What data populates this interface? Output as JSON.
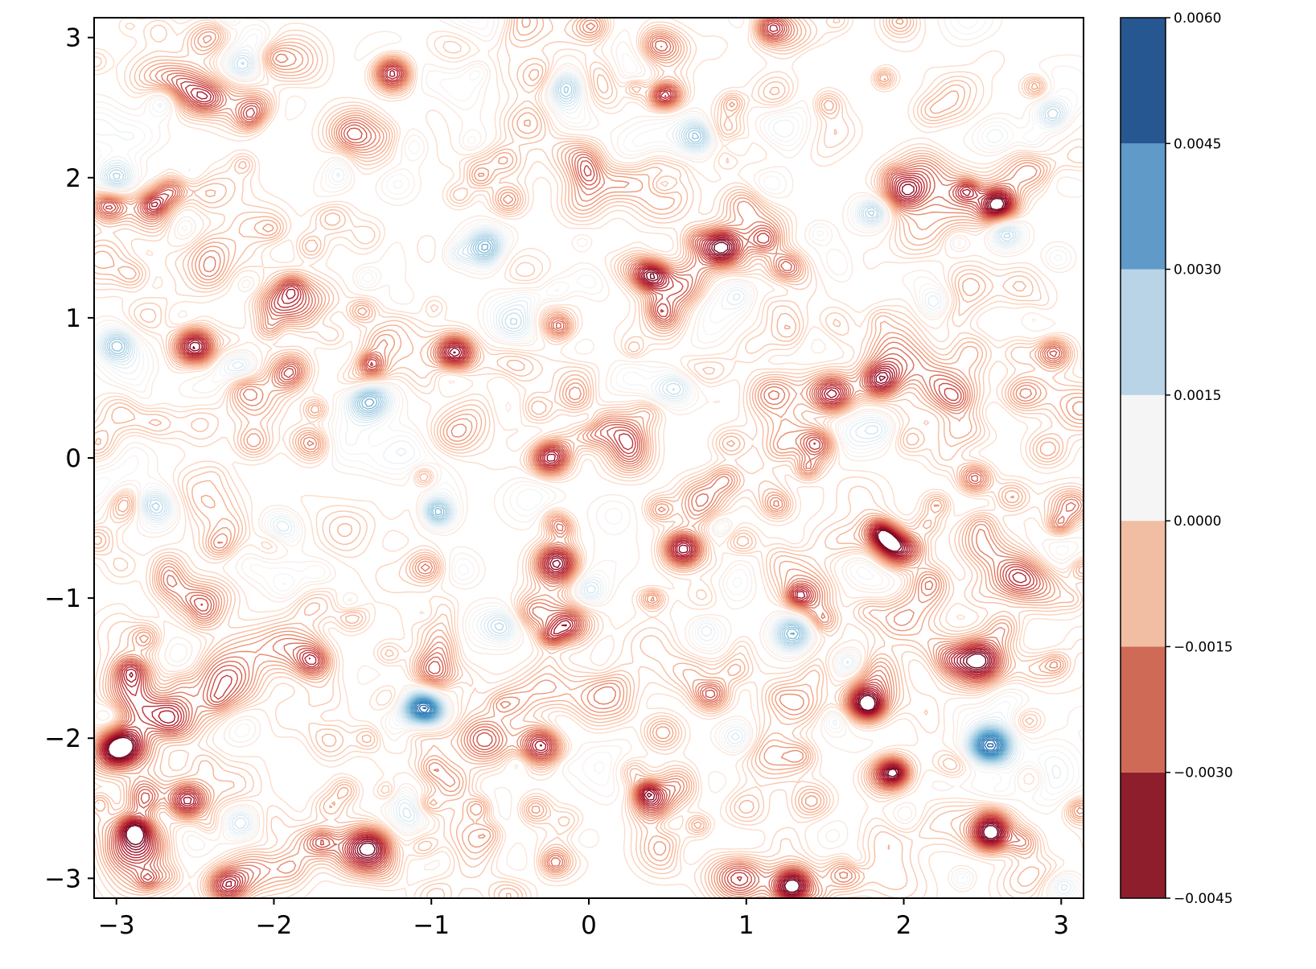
{
  "chart_data": {
    "type": "contour",
    "title": "",
    "xlabel": "",
    "ylabel": "",
    "xlim": [
      -3.14159,
      3.14159
    ],
    "ylim": [
      -3.14159,
      3.14159
    ],
    "xticks": [
      {
        "value": -3,
        "label": "−3"
      },
      {
        "value": -2,
        "label": "−2"
      },
      {
        "value": -1,
        "label": "−1"
      },
      {
        "value": 0,
        "label": "0"
      },
      {
        "value": 1,
        "label": "1"
      },
      {
        "value": 2,
        "label": "2"
      },
      {
        "value": 3,
        "label": "3"
      }
    ],
    "yticks": [
      {
        "value": -3,
        "label": "−3"
      },
      {
        "value": -2,
        "label": "−2"
      },
      {
        "value": -1,
        "label": "−1"
      },
      {
        "value": 0,
        "label": "0"
      },
      {
        "value": 1,
        "label": "1"
      },
      {
        "value": 2,
        "label": "2"
      },
      {
        "value": 3,
        "label": "3"
      }
    ],
    "grid": false,
    "colormap": "RdBu",
    "field_description": "noisy field of small-scale blobs with many closely spaced contour lines",
    "z_range": [
      -0.0045,
      0.006
    ],
    "colorbar": {
      "levels": [
        {
          "value": -0.0045,
          "label": "−0.0045"
        },
        {
          "value": -0.003,
          "label": "−0.0030"
        },
        {
          "value": -0.0015,
          "label": "−0.0015"
        },
        {
          "value": 0.0,
          "label": "0.0000"
        },
        {
          "value": 0.0015,
          "label": "0.0015"
        },
        {
          "value": 0.003,
          "label": "0.0030"
        },
        {
          "value": 0.0045,
          "label": "0.0045"
        },
        {
          "value": 0.006,
          "label": "0.0060"
        }
      ],
      "bands": [
        {
          "from": -0.0045,
          "to": -0.003,
          "color": "#8e1e2c"
        },
        {
          "from": -0.003,
          "to": -0.0015,
          "color": "#cf6a56"
        },
        {
          "from": -0.0015,
          "to": 0.0,
          "color": "#f1bea4"
        },
        {
          "from": 0.0,
          "to": 0.0015,
          "color": "#f5f5f5"
        },
        {
          "from": 0.0015,
          "to": 0.003,
          "color": "#b9d4e6"
        },
        {
          "from": 0.003,
          "to": 0.0045,
          "color": "#5f9ac8"
        },
        {
          "from": 0.0045,
          "to": 0.006,
          "color": "#275790"
        }
      ]
    },
    "features": [
      {
        "type": "min",
        "x": -1.25,
        "y": 2.75,
        "amp": -0.0045,
        "sigma": 0.09
      },
      {
        "type": "min",
        "x": -0.85,
        "y": 0.75,
        "amp": -0.0042,
        "sigma": 0.09
      },
      {
        "type": "min",
        "x": -0.25,
        "y": 0.0,
        "amp": -0.004,
        "sigma": 0.09
      },
      {
        "type": "min",
        "x": -0.2,
        "y": -0.75,
        "amp": -0.0043,
        "sigma": 0.1
      },
      {
        "type": "min",
        "x": 0.6,
        "y": -0.65,
        "amp": -0.0042,
        "sigma": 0.09
      },
      {
        "type": "min",
        "x": 0.85,
        "y": 1.5,
        "amp": -0.0042,
        "sigma": 0.1
      },
      {
        "type": "min",
        "x": 0.4,
        "y": 1.3,
        "amp": -0.0035,
        "sigma": 0.08
      },
      {
        "type": "min",
        "x": 1.55,
        "y": 0.45,
        "amp": -0.004,
        "sigma": 0.1
      },
      {
        "type": "min",
        "x": 1.85,
        "y": 0.55,
        "amp": -0.0036,
        "sigma": 0.09
      },
      {
        "type": "min",
        "x": 1.75,
        "y": -1.75,
        "amp": -0.004,
        "sigma": 0.09
      },
      {
        "type": "min",
        "x": 2.55,
        "y": -2.65,
        "amp": -0.0042,
        "sigma": 0.1
      },
      {
        "type": "min",
        "x": 2.6,
        "y": 1.8,
        "amp": -0.0038,
        "sigma": 0.08
      },
      {
        "type": "min",
        "x": -2.95,
        "y": -2.05,
        "amp": -0.0038,
        "sigma": 0.1
      },
      {
        "type": "min",
        "x": -1.45,
        "y": -2.8,
        "amp": -0.0036,
        "sigma": 0.12
      },
      {
        "type": "min",
        "x": -0.3,
        "y": -2.05,
        "amp": -0.0038,
        "sigma": 0.1
      },
      {
        "type": "min",
        "x": -2.5,
        "y": 0.8,
        "amp": -0.0034,
        "sigma": 0.09
      },
      {
        "type": "min",
        "x": -2.55,
        "y": -2.45,
        "amp": -0.0034,
        "sigma": 0.09
      },
      {
        "type": "min",
        "x": 1.9,
        "y": -2.25,
        "amp": -0.0034,
        "sigma": 0.1
      },
      {
        "type": "min",
        "x": 1.3,
        "y": -3.05,
        "amp": -0.0036,
        "sigma": 0.1
      },
      {
        "type": "min",
        "x": -2.3,
        "y": -3.05,
        "amp": -0.0034,
        "sigma": 0.09
      },
      {
        "type": "min",
        "x": -2.65,
        "y": 1.9,
        "amp": -0.003,
        "sigma": 0.08
      },
      {
        "type": "min",
        "x": -3.05,
        "y": 1.8,
        "amp": -0.003,
        "sigma": 0.08
      },
      {
        "type": "min",
        "x": 1.45,
        "y": 0.1,
        "amp": -0.0033,
        "sigma": 0.09
      },
      {
        "type": "min",
        "x": 1.95,
        "y": -0.65,
        "amp": -0.003,
        "sigma": 0.09
      },
      {
        "type": "min",
        "x": 2.45,
        "y": -0.15,
        "amp": -0.003,
        "sigma": 0.08
      },
      {
        "type": "min",
        "x": 2.95,
        "y": 0.75,
        "amp": -0.003,
        "sigma": 0.08
      },
      {
        "type": "min",
        "x": 0.4,
        "y": -2.45,
        "amp": -0.003,
        "sigma": 0.09
      },
      {
        "type": "min",
        "x": -1.75,
        "y": -1.45,
        "amp": -0.0028,
        "sigma": 0.08
      },
      {
        "type": "max",
        "x": -1.05,
        "y": -1.8,
        "amp": 0.006,
        "sigma": 0.1
      },
      {
        "type": "max",
        "x": 2.55,
        "y": -2.05,
        "amp": 0.0048,
        "sigma": 0.1
      },
      {
        "type": "max",
        "x": -0.65,
        "y": 1.5,
        "amp": 0.0036,
        "sigma": 0.1
      },
      {
        "type": "max",
        "x": 1.3,
        "y": -1.25,
        "amp": 0.0036,
        "sigma": 0.1
      },
      {
        "type": "max",
        "x": -0.15,
        "y": 2.65,
        "amp": 0.0034,
        "sigma": 0.1
      },
      {
        "type": "max",
        "x": 0.7,
        "y": 2.3,
        "amp": 0.0032,
        "sigma": 0.09
      },
      {
        "type": "max",
        "x": -1.4,
        "y": 0.4,
        "amp": 0.0032,
        "sigma": 0.1
      },
      {
        "type": "max",
        "x": -0.95,
        "y": -0.4,
        "amp": 0.003,
        "sigma": 0.08
      },
      {
        "type": "max",
        "x": 2.95,
        "y": 2.45,
        "amp": 0.0028,
        "sigma": 0.08
      },
      {
        "type": "max",
        "x": -2.2,
        "y": 2.8,
        "amp": 0.0028,
        "sigma": 0.09
      },
      {
        "type": "max",
        "x": -2.7,
        "y": 2.55,
        "amp": 0.0026,
        "sigma": 0.08
      },
      {
        "type": "max",
        "x": -3.0,
        "y": 2.0,
        "amp": 0.0026,
        "sigma": 0.09
      },
      {
        "type": "max",
        "x": -2.75,
        "y": -0.35,
        "amp": 0.0026,
        "sigma": 0.1
      },
      {
        "type": "max",
        "x": 1.8,
        "y": 1.75,
        "amp": 0.0026,
        "sigma": 0.08
      },
      {
        "type": "max",
        "x": 2.65,
        "y": 1.6,
        "amp": 0.0026,
        "sigma": 0.08
      },
      {
        "type": "max",
        "x": 1.65,
        "y": -1.45,
        "amp": 0.0024,
        "sigma": 0.08
      },
      {
        "type": "max",
        "x": 0.95,
        "y": -2.0,
        "amp": 0.0024,
        "sigma": 0.09
      },
      {
        "type": "max",
        "x": 0.55,
        "y": 0.5,
        "amp": 0.0022,
        "sigma": 0.09
      },
      {
        "type": "max",
        "x": -0.55,
        "y": -1.2,
        "amp": 0.0022,
        "sigma": 0.09
      },
      {
        "type": "max",
        "x": 2.2,
        "y": 1.1,
        "amp": 0.0022,
        "sigma": 0.09
      },
      {
        "type": "max",
        "x": 1.2,
        "y": 1.2,
        "amp": 0.0022,
        "sigma": 0.09
      },
      {
        "type": "max",
        "x": -2.2,
        "y": -2.6,
        "amp": 0.0024,
        "sigma": 0.09
      },
      {
        "type": "max",
        "x": 3.0,
        "y": -3.05,
        "amp": 0.0022,
        "sigma": 0.08
      },
      {
        "type": "max",
        "x": -1.95,
        "y": -0.5,
        "amp": 0.002,
        "sigma": 0.09
      },
      {
        "type": "max",
        "x": -3.0,
        "y": 0.8,
        "amp": 0.002,
        "sigma": 0.08
      },
      {
        "type": "max",
        "x": 0.0,
        "y": -0.95,
        "amp": 0.002,
        "sigma": 0.08
      }
    ],
    "noise_blob_count": 900,
    "noise_amplitude": 0.0016
  }
}
